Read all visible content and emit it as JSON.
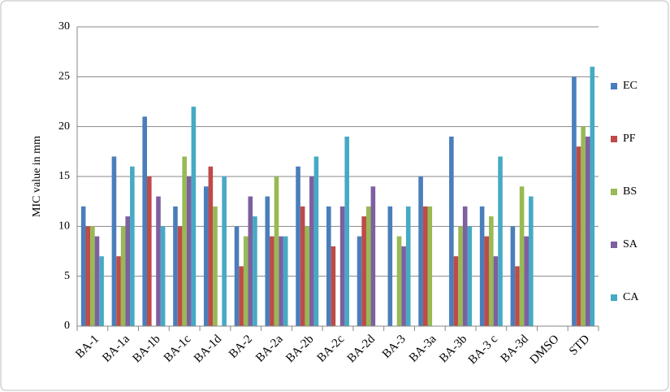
{
  "chart_data": {
    "type": "bar",
    "y_label": "MIC value in mm",
    "categories": [
      "BA-1",
      "BA-1a",
      "BA-1b",
      "BA-1c",
      "BA-1d",
      "BA-2",
      "BA-2a",
      "BA-2b",
      "BA-2c",
      "BA-2d",
      "BA-3",
      "BA-3a",
      "BA-3b",
      "BA-3 c",
      "BA-3d",
      "DMSO",
      "STD"
    ],
    "series": [
      {
        "name": "EC",
        "color": "#4a7ebb",
        "values": [
          12,
          17,
          21,
          12,
          14,
          10,
          13,
          16,
          12,
          9,
          12,
          15,
          19,
          12,
          10,
          0,
          25
        ]
      },
      {
        "name": "PF",
        "color": "#be4b48",
        "values": [
          10,
          7,
          15,
          10,
          16,
          6,
          9,
          12,
          8,
          11,
          0,
          12,
          7,
          9,
          6,
          0,
          18
        ]
      },
      {
        "name": "BS",
        "color": "#98b954",
        "values": [
          10,
          10,
          0,
          17,
          12,
          9,
          15,
          10,
          0,
          12,
          9,
          12,
          10,
          11,
          14,
          0,
          20
        ]
      },
      {
        "name": "SA",
        "color": "#7d60a0",
        "values": [
          9,
          11,
          13,
          15,
          0,
          13,
          9,
          15,
          12,
          14,
          8,
          0,
          12,
          7,
          9,
          0,
          19
        ]
      },
      {
        "name": "CA",
        "color": "#46aac5",
        "values": [
          7,
          16,
          10,
          22,
          15,
          11,
          9,
          17,
          19,
          0,
          12,
          0,
          10,
          17,
          13,
          0,
          26
        ]
      }
    ],
    "ylim": [
      0,
      30
    ],
    "yticks": [
      0,
      5,
      10,
      15,
      20,
      25,
      30
    ],
    "grid": true,
    "legend": "right"
  }
}
